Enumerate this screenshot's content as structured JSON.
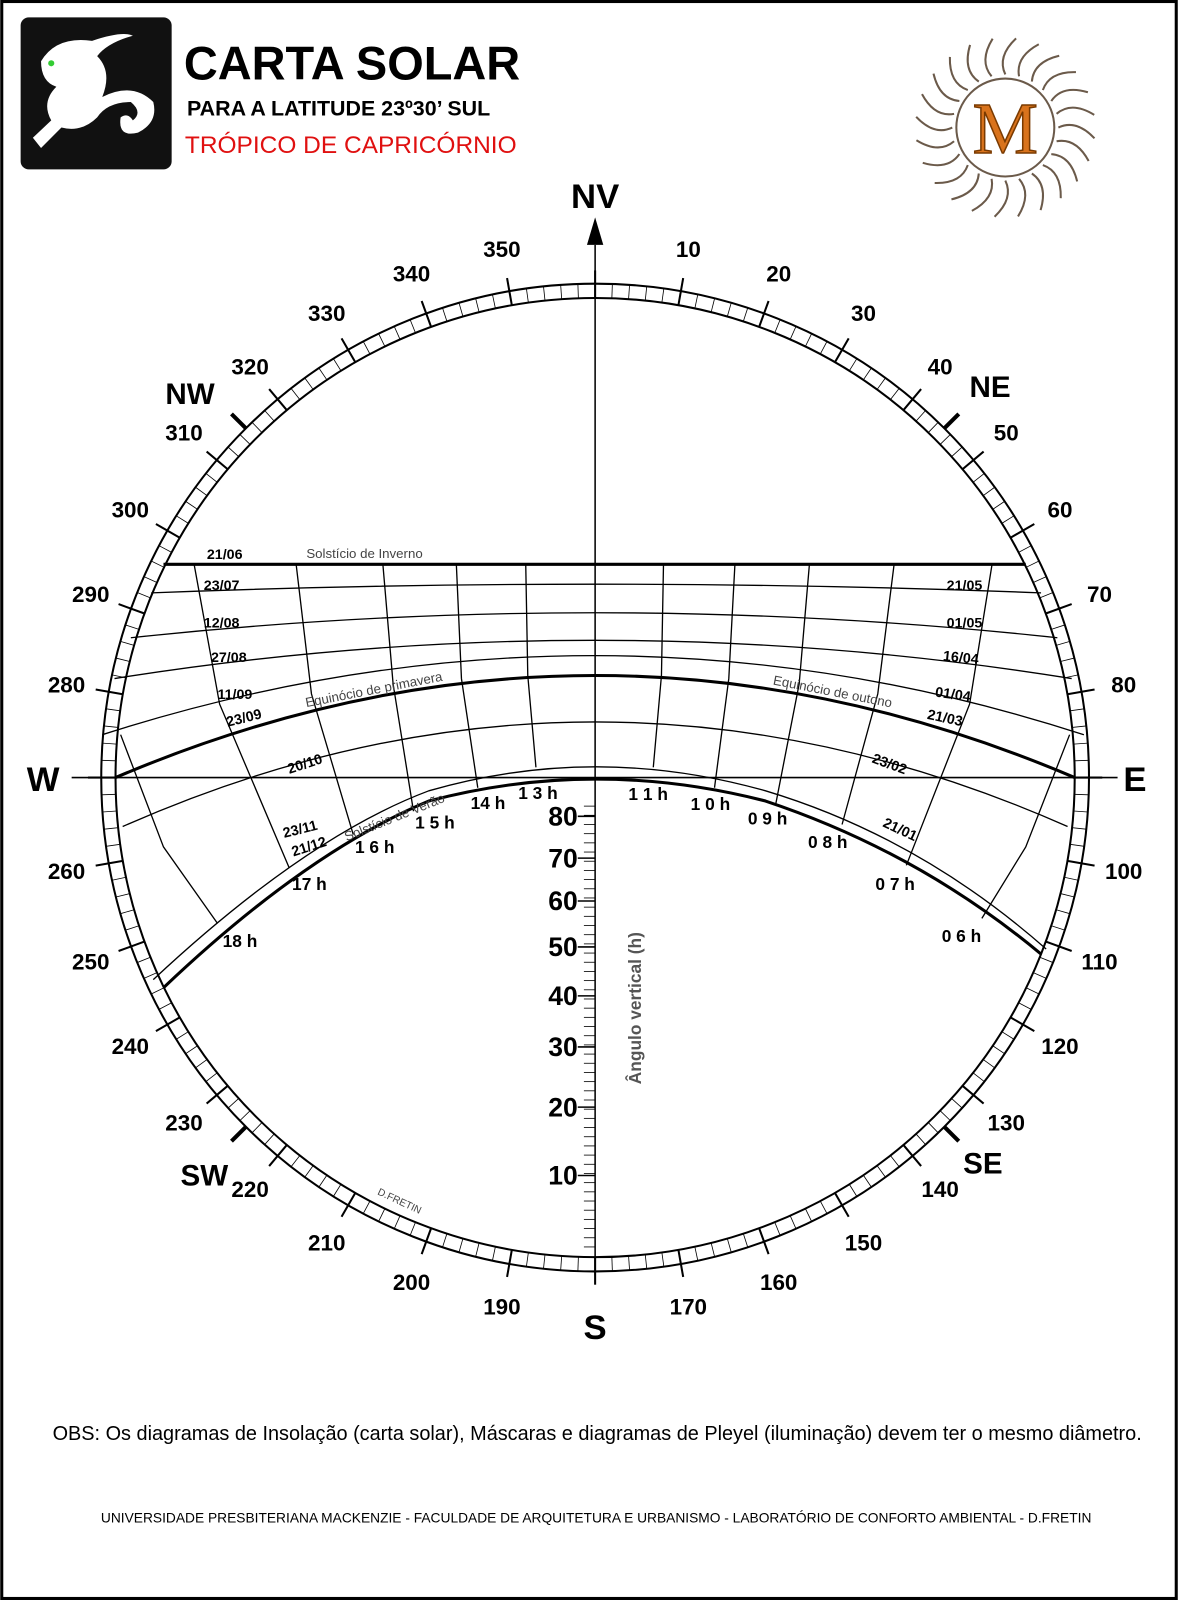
{
  "header": {
    "title": "CARTA SOLAR",
    "subtitle": "PARA A LATITUDE 23º30’ SUL",
    "region": "TRÓPICO DE CAPRICÓRNIO",
    "logo_letter": "M"
  },
  "compass": {
    "north": "NV",
    "south": "S",
    "west": "W",
    "east": "E",
    "northwest": "NW",
    "northeast": "NE",
    "southwest": "SW",
    "southeast": "SE",
    "azimuths": [
      "10",
      "20",
      "30",
      "40",
      "50",
      "60",
      "70",
      "80",
      "100",
      "110",
      "120",
      "130",
      "140",
      "150",
      "160",
      "170",
      "190",
      "200",
      "210",
      "220",
      "230",
      "240",
      "250",
      "260",
      "280",
      "290",
      "300",
      "310",
      "320",
      "330",
      "340",
      "350"
    ]
  },
  "curves": {
    "winter_solstice": "Solstício de Inverno",
    "spring_equinox": "Equinócio de primavera",
    "autumn_equinox": "Equinócio de outono",
    "summer_solstice": "Solstício de Verão"
  },
  "dates_left": [
    "21/06",
    "23/07",
    "12/08",
    "27/08",
    "11/09",
    "23/09",
    "20/10",
    "23/11",
    "21/12"
  ],
  "dates_right": [
    "21/05",
    "01/05",
    "16/04",
    "01/04",
    "21/03",
    "23/02",
    "21/01"
  ],
  "hours": [
    "18 h",
    "17 h",
    "1 6 h",
    "1 5 h",
    "14 h",
    "1 3 h",
    "1 1 h",
    "1 0 h",
    "0 9 h",
    "0 8 h",
    "0 7 h",
    "0 6 h"
  ],
  "altitude": {
    "axis_label": "Ângulo vertical (h)",
    "labels": [
      "80",
      "70",
      "60",
      "50",
      "40",
      "30",
      "20",
      "10"
    ]
  },
  "signature": "D.FRETIN",
  "note": "OBS: Os diagramas de Insolação (carta solar), Máscaras e diagramas de Pleyel (iluminação) devem ter o mesmo diâmetro.",
  "footer": "UNIVERSIDADE PRESBITERIANA MACKENZIE - FACULDADE DE ARQUITETURA E URBANISMO - LABORATÓRIO DE CONFORTO AMBIENTAL  - D.FRETIN"
}
